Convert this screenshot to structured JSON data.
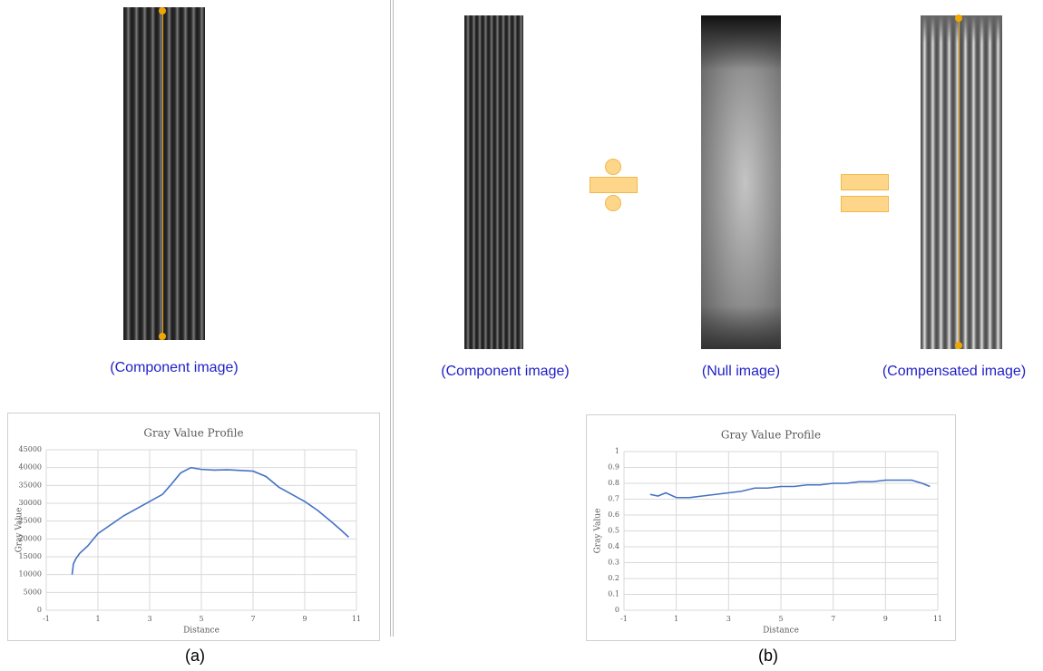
{
  "figures": {
    "left_caption": "(Component image)",
    "right_captions": [
      "(Component image)",
      "(Null image)",
      "(Compensated image)"
    ],
    "panel_labels": [
      "(a)",
      "(b)"
    ]
  },
  "chart_data": [
    {
      "type": "line",
      "title": "Gray Value Profile",
      "x_label": "Distance",
      "y_label": "Gray Value",
      "x": [
        0,
        0.05,
        0.15,
        0.3,
        0.6,
        1,
        1.5,
        2,
        2.5,
        3,
        3.5,
        3.8,
        4.2,
        4.6,
        5,
        5.5,
        6,
        6.5,
        7,
        7.5,
        8,
        8.5,
        9,
        9.5,
        10,
        10.4,
        10.7
      ],
      "series": [
        {
          "name": "Gray Value",
          "color": "#4472c4",
          "values": [
            10000,
            13000,
            14500,
            16000,
            18000,
            21500,
            24000,
            26500,
            28500,
            30500,
            32500,
            35000,
            38500,
            40000,
            39500,
            39300,
            39400,
            39200,
            39000,
            37500,
            34500,
            32500,
            30500,
            28000,
            25000,
            22500,
            20500
          ]
        }
      ],
      "xlim": [
        -1,
        11
      ],
      "xticks": [
        -1,
        1,
        3,
        5,
        7,
        9,
        11
      ],
      "ylim": [
        0,
        45000
      ],
      "yticks": [
        0,
        5000,
        10000,
        15000,
        20000,
        25000,
        30000,
        35000,
        40000,
        45000
      ],
      "grid": true
    },
    {
      "type": "line",
      "title": "Gray Value Profile",
      "x_label": "Distance",
      "y_label": "Gray Value",
      "x": [
        0,
        0.3,
        0.6,
        1,
        1.5,
        2,
        2.5,
        3,
        3.5,
        4,
        4.5,
        5,
        5.5,
        6,
        6.5,
        7,
        7.5,
        8,
        8.5,
        9,
        9.5,
        10,
        10.4,
        10.7
      ],
      "series": [
        {
          "name": "Gray Value",
          "color": "#4472c4",
          "values": [
            0.73,
            0.72,
            0.74,
            0.71,
            0.71,
            0.72,
            0.73,
            0.74,
            0.75,
            0.77,
            0.77,
            0.78,
            0.78,
            0.79,
            0.79,
            0.8,
            0.8,
            0.81,
            0.81,
            0.82,
            0.82,
            0.82,
            0.8,
            0.78
          ]
        }
      ],
      "xlim": [
        -1,
        11
      ],
      "xticks": [
        -1,
        1,
        3,
        5,
        7,
        9,
        11
      ],
      "ylim": [
        0,
        1
      ],
      "yticks": [
        0,
        0.1,
        0.2,
        0.3,
        0.4,
        0.5,
        0.6,
        0.7,
        0.8,
        0.9,
        1
      ],
      "grid": true
    }
  ]
}
